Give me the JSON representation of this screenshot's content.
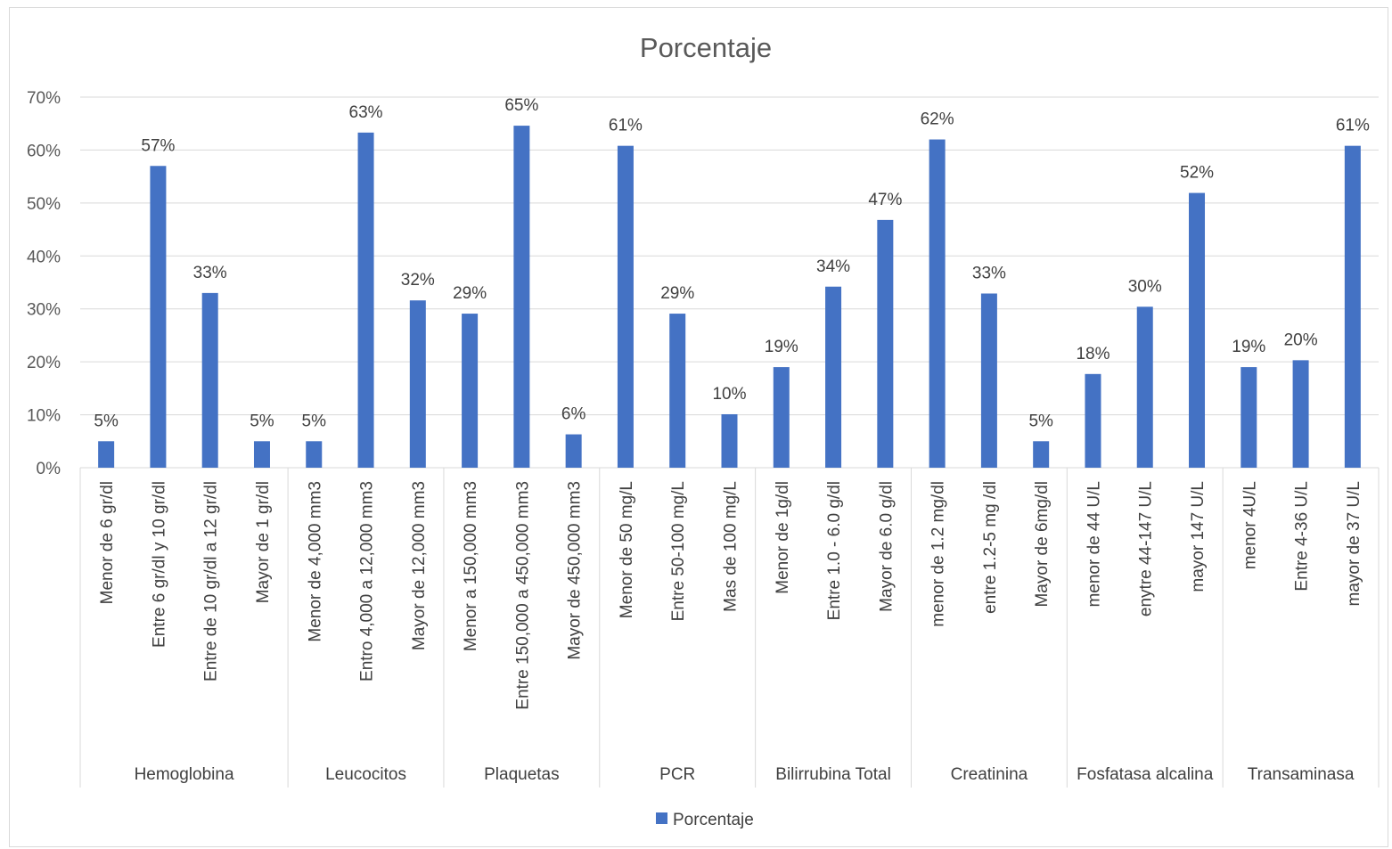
{
  "chart_data": {
    "type": "bar",
    "title": "Porcentaje",
    "xlabel": "",
    "ylabel": "",
    "ylim": [
      0,
      0.7
    ],
    "yticks": [
      "0%",
      "10%",
      "20%",
      "30%",
      "40%",
      "50%",
      "60%",
      "70%"
    ],
    "grid": true,
    "legend_position": "bottom",
    "bar_color": "#4472c4",
    "groups": [
      {
        "name": "Hemoglobina",
        "categories": [
          "Menor de 6 gr/dl",
          "Entre 6 gr/dl y 10 gr/dl",
          "Entre de 10 gr/dl a 12 gr/dl",
          "Mayor de 1 gr/dl"
        ],
        "values": [
          0.05,
          0.57,
          0.33,
          0.05
        ],
        "labels": [
          "5%",
          "57%",
          "33%",
          "5%"
        ]
      },
      {
        "name": "Leucocitos",
        "categories": [
          "Menor de 4,000 mm3",
          "Entro 4,000 a 12,000 mm3",
          "Mayor de 12,000 mm3"
        ],
        "values": [
          0.05,
          0.633,
          0.316
        ],
        "labels": [
          "5%",
          "63%",
          "32%"
        ]
      },
      {
        "name": "Plaquetas",
        "categories": [
          "Menor a 150,000 mm3",
          "Entre 150,000 a 450,000 mm3",
          "Mayor de 450,000 mm3"
        ],
        "values": [
          0.291,
          0.646,
          0.063
        ],
        "labels": [
          "29%",
          "65%",
          "6%"
        ]
      },
      {
        "name": "PCR",
        "categories": [
          "Menor de 50 mg/L",
          "Entre 50-100 mg/L",
          "Mas de 100 mg/L"
        ],
        "values": [
          0.608,
          0.291,
          0.101
        ],
        "labels": [
          "61%",
          "29%",
          "10%"
        ]
      },
      {
        "name": "Bilirrubina Total",
        "categories": [
          "Menor de 1g/dl",
          "Entre 1.0 - 6.0 g/dl",
          "Mayor de 6.0 g/dl"
        ],
        "values": [
          0.19,
          0.342,
          0.468
        ],
        "labels": [
          "19%",
          "34%",
          "47%"
        ]
      },
      {
        "name": "Creatinina",
        "categories": [
          "menor de 1.2 mg/dl",
          "entre 1.2-5 mg /dl",
          "Mayor de 6mg/dl"
        ],
        "values": [
          0.62,
          0.329,
          0.05
        ],
        "labels": [
          "62%",
          "33%",
          "5%"
        ]
      },
      {
        "name": "Fosfatasa alcalina",
        "categories": [
          "menor de 44 U/L",
          "enytre 44-147 U/L",
          "mayor 147 U/L"
        ],
        "values": [
          0.177,
          0.304,
          0.519
        ],
        "labels": [
          "18%",
          "30%",
          "52%"
        ]
      },
      {
        "name": "Transaminasa",
        "categories": [
          "menor 4U/L",
          "Entre 4-36 U/L",
          "mayor de 37 U/L"
        ],
        "values": [
          0.19,
          0.203,
          0.608
        ],
        "labels": [
          "19%",
          "20%",
          "61%"
        ]
      }
    ],
    "series": [
      {
        "name": "Porcentaje"
      }
    ]
  }
}
